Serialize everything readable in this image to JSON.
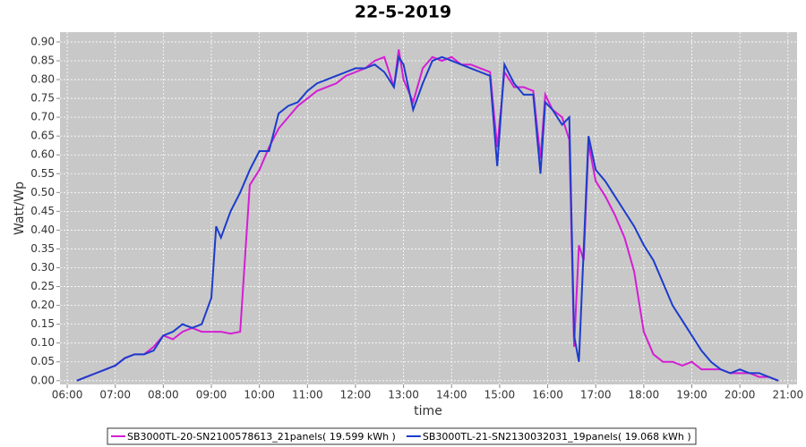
{
  "chart_data": {
    "type": "line",
    "title": "22-5-2019",
    "x_label": "time",
    "y_label": "Watt/Wp",
    "x": [
      6.2,
      6.4,
      6.6,
      6.8,
      7.0,
      7.2,
      7.4,
      7.6,
      7.8,
      8.0,
      8.2,
      8.4,
      8.6,
      8.8,
      9.0,
      9.1,
      9.2,
      9.4,
      9.6,
      9.8,
      10.0,
      10.2,
      10.4,
      10.6,
      10.8,
      11.0,
      11.2,
      11.4,
      11.6,
      11.8,
      12.0,
      12.2,
      12.4,
      12.6,
      12.8,
      12.9,
      13.0,
      13.2,
      13.4,
      13.6,
      13.8,
      14.0,
      14.2,
      14.4,
      14.6,
      14.8,
      14.95,
      15.1,
      15.3,
      15.5,
      15.7,
      15.85,
      15.95,
      16.1,
      16.3,
      16.45,
      16.55,
      16.65,
      16.75,
      16.85,
      17.0,
      17.2,
      17.4,
      17.6,
      17.8,
      18.0,
      18.2,
      18.4,
      18.6,
      18.8,
      19.0,
      19.2,
      19.4,
      19.6,
      19.8,
      20.0,
      20.2,
      20.4,
      20.6,
      20.8
    ],
    "series": [
      {
        "name": "SB3000TL-20-SN2100578613_21panels( 19.599 kWh )",
        "color": "#d41ed4",
        "values": [
          0.0,
          0.01,
          0.02,
          0.03,
          0.04,
          0.06,
          0.07,
          0.07,
          0.09,
          0.12,
          0.11,
          0.13,
          0.14,
          0.13,
          0.13,
          0.13,
          0.13,
          0.125,
          0.13,
          0.52,
          0.56,
          0.62,
          0.67,
          0.7,
          0.73,
          0.75,
          0.77,
          0.78,
          0.79,
          0.81,
          0.82,
          0.83,
          0.85,
          0.86,
          0.78,
          0.88,
          0.8,
          0.74,
          0.83,
          0.86,
          0.85,
          0.86,
          0.84,
          0.84,
          0.83,
          0.82,
          0.62,
          0.82,
          0.78,
          0.78,
          0.77,
          0.59,
          0.76,
          0.72,
          0.7,
          0.64,
          0.09,
          0.36,
          0.32,
          0.63,
          0.53,
          0.49,
          0.44,
          0.38,
          0.29,
          0.13,
          0.07,
          0.05,
          0.05,
          0.04,
          0.05,
          0.03,
          0.03,
          0.03,
          0.02,
          0.02,
          0.02,
          0.01,
          0.01,
          0.0
        ]
      },
      {
        "name": "SB3000TL-21-SN2130032031_19panels( 19.068 kWh )",
        "color": "#1c3ccc",
        "values": [
          0.0,
          0.01,
          0.02,
          0.03,
          0.04,
          0.06,
          0.07,
          0.07,
          0.08,
          0.12,
          0.13,
          0.15,
          0.14,
          0.15,
          0.22,
          0.41,
          0.38,
          0.45,
          0.5,
          0.56,
          0.61,
          0.61,
          0.71,
          0.73,
          0.74,
          0.77,
          0.79,
          0.8,
          0.81,
          0.82,
          0.83,
          0.83,
          0.84,
          0.82,
          0.78,
          0.86,
          0.84,
          0.72,
          0.79,
          0.85,
          0.86,
          0.85,
          0.84,
          0.83,
          0.82,
          0.81,
          0.57,
          0.84,
          0.79,
          0.76,
          0.76,
          0.55,
          0.74,
          0.72,
          0.68,
          0.7,
          0.12,
          0.05,
          0.35,
          0.65,
          0.56,
          0.53,
          0.49,
          0.45,
          0.41,
          0.36,
          0.32,
          0.26,
          0.2,
          0.16,
          0.12,
          0.08,
          0.05,
          0.03,
          0.02,
          0.03,
          0.02,
          0.02,
          0.01,
          0.0
        ]
      }
    ],
    "xlim": [
      5.85,
      21.19
    ],
    "ylim": [
      -0.01,
      0.926
    ],
    "xticks": [
      {
        "value": 6,
        "label": "06:00"
      },
      {
        "value": 7,
        "label": "07:00"
      },
      {
        "value": 8,
        "label": "08:00"
      },
      {
        "value": 9,
        "label": "09:00"
      },
      {
        "value": 10,
        "label": "10:00"
      },
      {
        "value": 11,
        "label": "11:00"
      },
      {
        "value": 12,
        "label": "12:00"
      },
      {
        "value": 13,
        "label": "13:00"
      },
      {
        "value": 14,
        "label": "14:00"
      },
      {
        "value": 15,
        "label": "15:00"
      },
      {
        "value": 16,
        "label": "16:00"
      },
      {
        "value": 17,
        "label": "17:00"
      },
      {
        "value": 18,
        "label": "18:00"
      },
      {
        "value": 19,
        "label": "19:00"
      },
      {
        "value": 20,
        "label": "20:00"
      },
      {
        "value": 21,
        "label": "21:00"
      }
    ],
    "yticks": [
      {
        "value": 0,
        "label": "0.00"
      },
      {
        "value": 0.05,
        "label": "0.05"
      },
      {
        "value": 0.1,
        "label": "0.10"
      },
      {
        "value": 0.15,
        "label": "0.15"
      },
      {
        "value": 0.2,
        "label": "0.20"
      },
      {
        "value": 0.25,
        "label": "0.25"
      },
      {
        "value": 0.3,
        "label": "0.30"
      },
      {
        "value": 0.35,
        "label": "0.35"
      },
      {
        "value": 0.4,
        "label": "0.40"
      },
      {
        "value": 0.45,
        "label": "0.45"
      },
      {
        "value": 0.5,
        "label": "0.50"
      },
      {
        "value": 0.55,
        "label": "0.55"
      },
      {
        "value": 0.6,
        "label": "0.60"
      },
      {
        "value": 0.65,
        "label": "0.65"
      },
      {
        "value": 0.7,
        "label": "0.70"
      },
      {
        "value": 0.75,
        "label": "0.75"
      },
      {
        "value": 0.8,
        "label": "0.80"
      },
      {
        "value": 0.85,
        "label": "0.85"
      },
      {
        "value": 0.9,
        "label": "0.90"
      }
    ],
    "grid": true
  }
}
